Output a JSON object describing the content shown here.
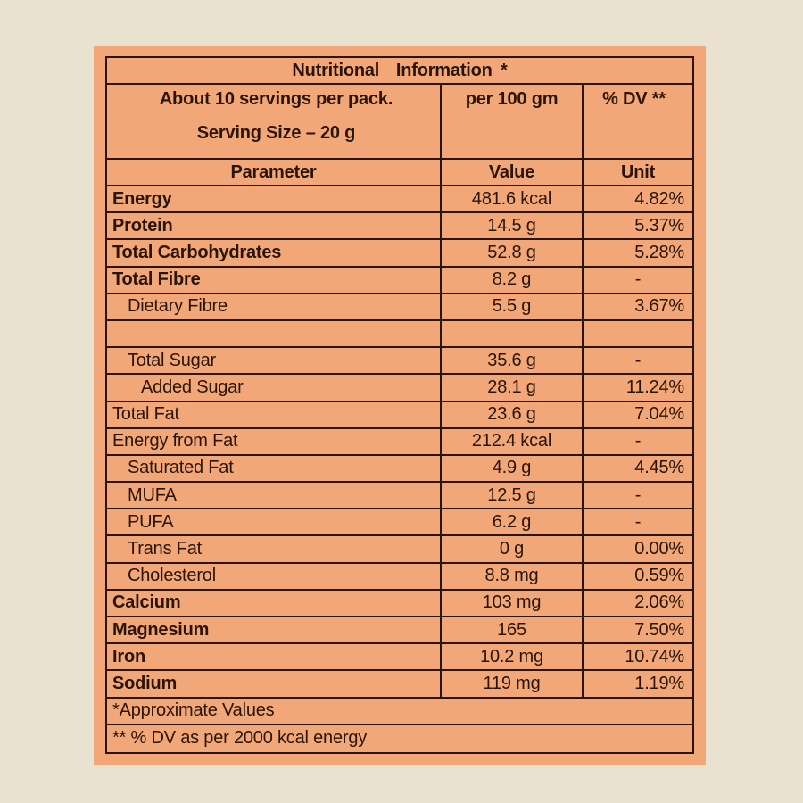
{
  "colors": {
    "page_background": "#eae2d0",
    "panel_background": "#f2a778",
    "border_and_text": "#2b150b"
  },
  "label": {
    "title": "Nutritional  Information *",
    "servings_line1": "About 10 servings per pack.",
    "servings_line2": "Serving Size – 20 g",
    "per_amount": "per 100 gm",
    "dv_header": "% DV **",
    "columns": {
      "parameter": "Parameter",
      "value": "Value",
      "unit": "Unit"
    },
    "rows": [
      {
        "parameter": "Energy",
        "value": "481.6 kcal",
        "unit": "4.82%"
      },
      {
        "parameter": "Protein",
        "value": "14.5 g",
        "unit": "5.37%"
      },
      {
        "parameter": "Total Carbohydrates",
        "value": "52.8 g",
        "unit": "5.28%"
      },
      {
        "parameter": "Total Fibre",
        "value": "8.2 g",
        "unit": "-"
      },
      {
        "parameter": "Dietary Fibre",
        "value": "5.5 g",
        "unit": "3.67%"
      },
      {
        "parameter": "",
        "value": "",
        "unit": ""
      },
      {
        "parameter": "Total Sugar",
        "value": "35.6 g",
        "unit": "-"
      },
      {
        "parameter": "Added Sugar",
        "value": "28.1 g",
        "unit": "11.24%"
      },
      {
        "parameter": "Total Fat",
        "value": "23.6 g",
        "unit": "7.04%"
      },
      {
        "parameter": "Energy from Fat",
        "value": "212.4 kcal",
        "unit": "-"
      },
      {
        "parameter": "Saturated Fat",
        "value": "4.9 g",
        "unit": "4.45%"
      },
      {
        "parameter": "MUFA",
        "value": "12.5 g",
        "unit": "-"
      },
      {
        "parameter": "PUFA",
        "value": "6.2 g",
        "unit": "-"
      },
      {
        "parameter": "Trans Fat",
        "value": "0 g",
        "unit": "0.00%"
      },
      {
        "parameter": "Cholesterol",
        "value": "8.8 mg",
        "unit": "0.59%"
      },
      {
        "parameter": "Calcium",
        "value": "103 mg",
        "unit": "2.06%"
      },
      {
        "parameter": "Magnesium",
        "value": "165",
        "unit": "7.50%"
      },
      {
        "parameter": "Iron",
        "value": "10.2 mg",
        "unit": "10.74%"
      },
      {
        "parameter": "Sodium",
        "value": "119 mg",
        "unit": "1.19%"
      }
    ],
    "footnotes": [
      "*Approximate Values",
      "** % DV as per 2000 kcal energy"
    ]
  }
}
